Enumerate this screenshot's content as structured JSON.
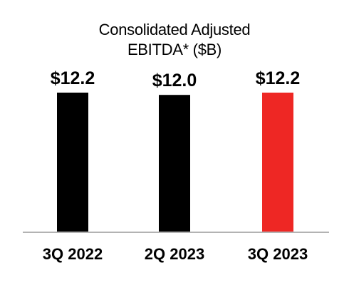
{
  "chart_data": {
    "type": "bar",
    "title": "Consolidated Adjusted EBITDA* ($B)",
    "title_lines": [
      "Consolidated Adjusted",
      "EBITDA* ($B)"
    ],
    "categories": [
      "3Q 2022",
      "2Q 2023",
      "3Q 2023"
    ],
    "values": [
      12.2,
      12.0,
      12.2
    ],
    "data_labels": [
      "$12.2",
      "$12.0",
      "$12.2"
    ],
    "bar_colors": [
      "#000000",
      "#000000",
      "#ee2724"
    ],
    "xlabel": "",
    "ylabel": "",
    "ylim": [
      0,
      12.2
    ],
    "grid": false,
    "legend": "none"
  }
}
